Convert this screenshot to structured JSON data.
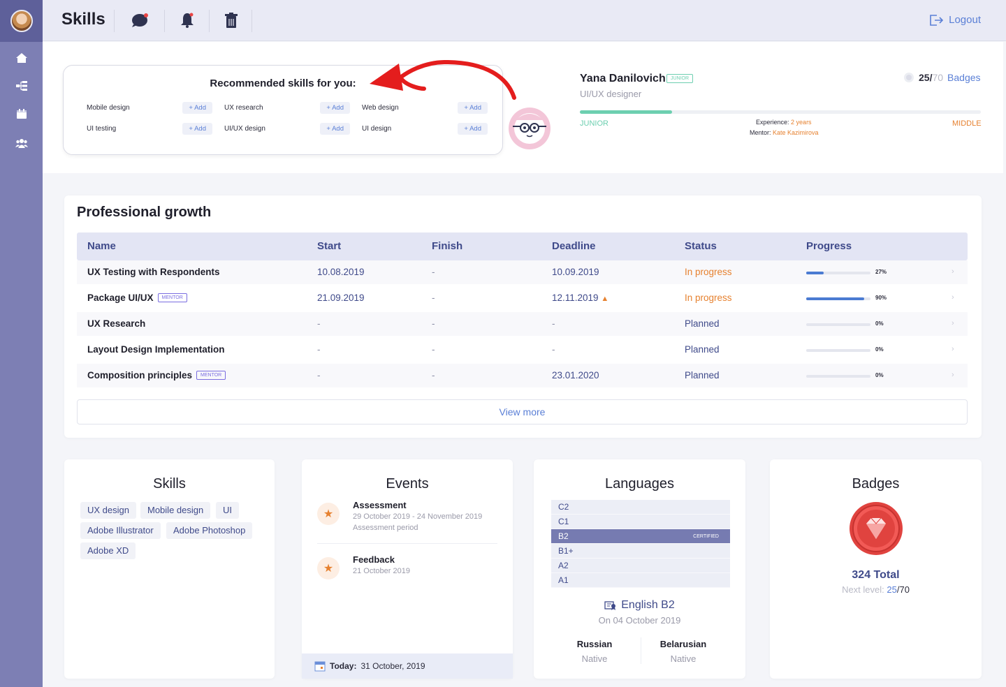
{
  "topbar": {
    "title": "Skills",
    "logout_label": "Logout"
  },
  "recommended": {
    "title": "Recommended skills for you:",
    "add_label": "+ Add",
    "items": [
      "Mobile design",
      "UX research",
      "Web design",
      "UI testing",
      "UI/UX design",
      "UI design"
    ]
  },
  "profile": {
    "name": "Yana Danilovich",
    "level_badge": "JUNIOR",
    "role": "UI/UX designer",
    "badges_count": "25/",
    "badges_total": "70",
    "badges_label": "Badges",
    "level_from": "JUNIOR",
    "level_to": "MIDDLE",
    "level_progress": 0.23,
    "experience_label": "Experience:",
    "experience_value": "2 years",
    "mentor_label": "Mentor:",
    "mentor_value": "Kate Kazimirova"
  },
  "growth": {
    "title": "Professional growth",
    "columns": [
      "Name",
      "Start",
      "Finish",
      "Deadline",
      "Status",
      "Progress"
    ],
    "rows": [
      {
        "name": "UX Testing with Respondents",
        "mentor": "",
        "start": "10.08.2019",
        "finish": "-",
        "deadline": "10.09.2019",
        "status": "In progress",
        "progress": 27,
        "progress_label": "27%"
      },
      {
        "name": "Package UI/UX",
        "mentor": "MENTOR",
        "start": "21.09.2019",
        "finish": "-",
        "deadline": "12.11.2019",
        "status": "In progress",
        "progress": 90,
        "progress_label": "90%"
      },
      {
        "name": "UX Research",
        "mentor": "",
        "start": "-",
        "finish": "-",
        "deadline": "-",
        "status": "Planned",
        "progress": 0,
        "progress_label": "0%"
      },
      {
        "name": "Layout Design Implementation",
        "mentor": "",
        "start": "-",
        "finish": "-",
        "deadline": "-",
        "status": "Planned",
        "progress": 0,
        "progress_label": "0%"
      },
      {
        "name": "Composition principles",
        "mentor": "MENTOR",
        "start": "-",
        "finish": "-",
        "deadline": "23.01.2020",
        "status": "Planned",
        "progress": 0,
        "progress_label": "0%"
      }
    ],
    "view_more": "View more"
  },
  "skills": {
    "title": "Skills",
    "chips": [
      "UX design",
      "Mobile design",
      "UI",
      "Adobe Illustrator",
      "Adobe Photoshop",
      "Adobe XD"
    ]
  },
  "events": {
    "title": "Events",
    "items": [
      {
        "title": "Assessment",
        "date": "29 October 2019 - 24 November 2019",
        "period": "Assessment period"
      },
      {
        "title": "Feedback",
        "date": "21 October 2019",
        "period": ""
      }
    ],
    "today_label": "Today:",
    "today_value": "31 October, 2019"
  },
  "languages": {
    "title": "Languages",
    "levels": [
      "C2",
      "C1",
      "B2",
      "B1+",
      "A2",
      "A1"
    ],
    "active_level": "B2",
    "certified": "CERTIFIED",
    "main": "English B2",
    "main_date": "On 04 October 2019",
    "others": [
      {
        "name": "Russian",
        "level": "Native"
      },
      {
        "name": "Belarusian",
        "level": "Native"
      }
    ]
  },
  "badges": {
    "title": "Badges",
    "total": "324 Total",
    "next_label": "Next level:",
    "next_current": "25",
    "next_total": "/70"
  },
  "colors": {
    "sidebar": "#7d7fb4",
    "accent": "#5a7fd6",
    "orange": "#e6812f",
    "green": "#6dcfb0"
  }
}
